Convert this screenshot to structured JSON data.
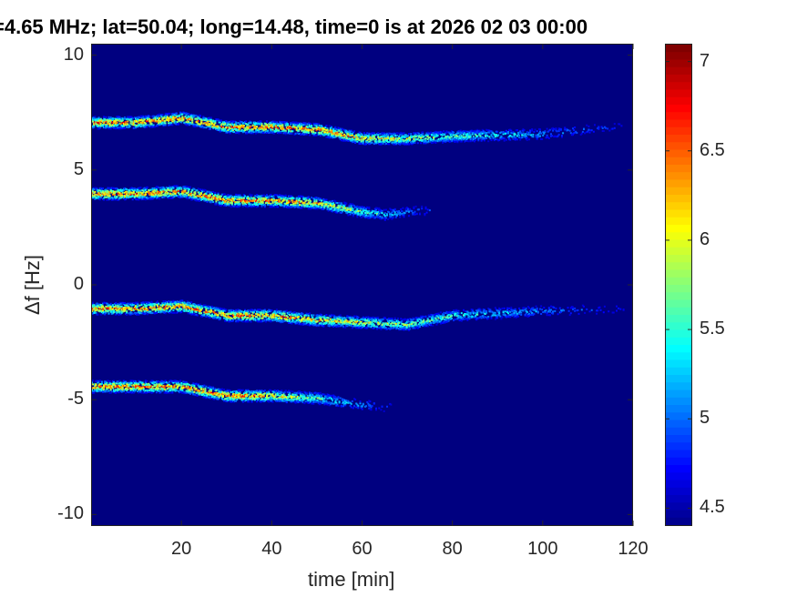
{
  "title": "=4.65 MHz;  lat=50.04; long=14.48, time=0 is at 2026 02 03 00:00",
  "chart_data": {
    "type": "heatmap",
    "title": "=4.65 MHz;  lat=50.04; long=14.48, time=0 is at 2026 02 03 00:00",
    "xlabel": "time [min]",
    "ylabel": "Δf [Hz]",
    "xlim": [
      0,
      120
    ],
    "ylim": [
      -10.5,
      10.5
    ],
    "xticks": [
      20,
      40,
      60,
      80,
      100,
      120
    ],
    "xtick_labels": [
      "20",
      "40",
      "60",
      "80",
      "100",
      "120"
    ],
    "yticks": [
      10,
      5,
      0,
      -5,
      -10
    ],
    "ytick_labels": [
      "10",
      "5",
      "0",
      "-5",
      "-10"
    ],
    "colorbar": {
      "range": [
        4.4,
        7.1
      ],
      "ticks": [
        4.5,
        5,
        5.5,
        6,
        6.5,
        7
      ],
      "tick_labels": [
        "4.5",
        "5",
        "5.5",
        "6",
        "6.5",
        "7"
      ],
      "colormap": "jet"
    },
    "background_value": 4.4,
    "traces": [
      {
        "points": [
          [
            0,
            7.1
          ],
          [
            10,
            7.1
          ],
          [
            20,
            7.3
          ],
          [
            30,
            6.9
          ],
          [
            40,
            6.9
          ],
          [
            50,
            6.8
          ],
          [
            60,
            6.4
          ],
          [
            70,
            6.4
          ],
          [
            80,
            6.5
          ],
          [
            100,
            6.6
          ],
          [
            120,
            7.0
          ]
        ],
        "peak": 7.0,
        "fade_start": 50,
        "fade_end": 120
      },
      {
        "points": [
          [
            0,
            4.0
          ],
          [
            10,
            4.0
          ],
          [
            20,
            4.1
          ],
          [
            30,
            3.7
          ],
          [
            40,
            3.7
          ],
          [
            50,
            3.6
          ],
          [
            60,
            3.2
          ],
          [
            65,
            3.1
          ],
          [
            75,
            3.3
          ]
        ],
        "peak": 7.0,
        "fade_start": 45,
        "fade_end": 78
      },
      {
        "points": [
          [
            0,
            -1.0
          ],
          [
            10,
            -1.0
          ],
          [
            20,
            -0.9
          ],
          [
            30,
            -1.3
          ],
          [
            40,
            -1.3
          ],
          [
            50,
            -1.5
          ],
          [
            60,
            -1.6
          ],
          [
            70,
            -1.7
          ],
          [
            80,
            -1.3
          ],
          [
            100,
            -1.1
          ],
          [
            120,
            -1.0
          ]
        ],
        "peak": 7.0,
        "fade_start": 40,
        "fade_end": 120
      },
      {
        "points": [
          [
            0,
            -4.4
          ],
          [
            10,
            -4.4
          ],
          [
            20,
            -4.4
          ],
          [
            30,
            -4.8
          ],
          [
            40,
            -4.8
          ],
          [
            50,
            -4.9
          ],
          [
            60,
            -5.2
          ],
          [
            67,
            -5.3
          ]
        ],
        "peak": 7.0,
        "fade_start": 35,
        "fade_end": 68
      }
    ]
  }
}
